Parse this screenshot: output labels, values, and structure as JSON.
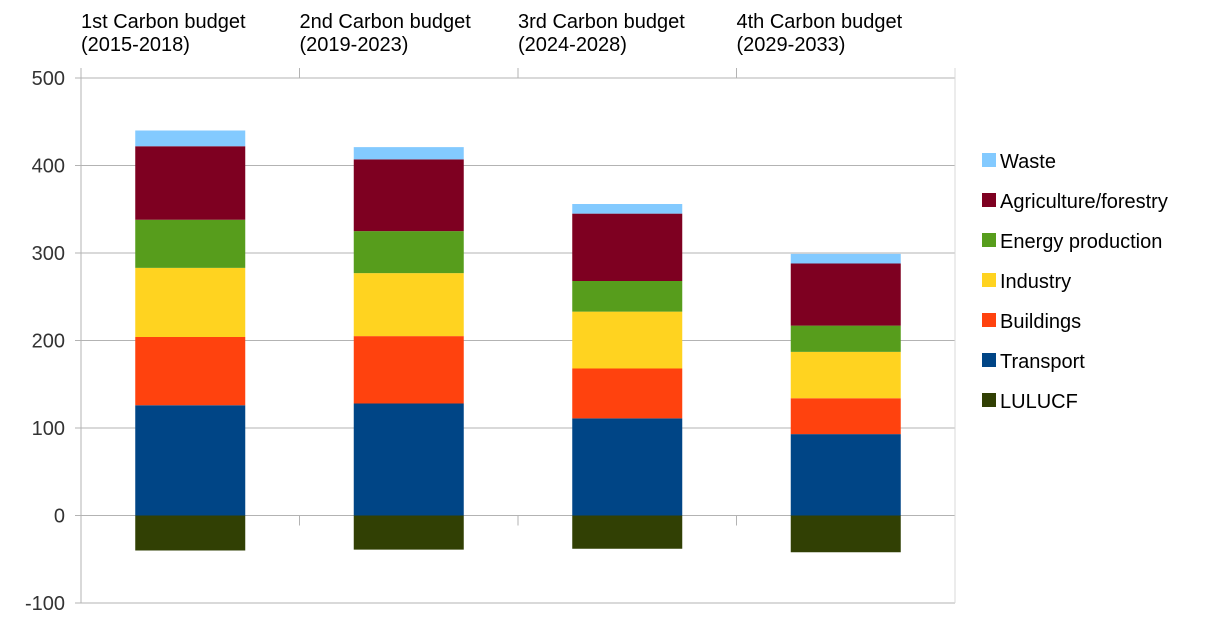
{
  "chart_data": {
    "type": "bar",
    "stacked": true,
    "title": "",
    "xlabel": "",
    "ylabel": "",
    "ylim": [
      -100,
      500
    ],
    "yticks": [
      -100,
      0,
      100,
      200,
      300,
      400,
      500
    ],
    "grid": true,
    "legend_position": "right",
    "categories": [
      [
        "1st Carbon budget",
        "(2015-2018)"
      ],
      [
        "2nd Carbon budget",
        "(2019-2023)"
      ],
      [
        "3rd Carbon budget",
        "(2024-2028)"
      ],
      [
        "4th Carbon budget",
        "(2029-2033)"
      ]
    ],
    "series": [
      {
        "name": "LULUCF",
        "color": "#314004",
        "values": [
          -40,
          -39,
          -38,
          -42
        ]
      },
      {
        "name": "Transport",
        "color": "#004586",
        "values": [
          126,
          128,
          111,
          93
        ]
      },
      {
        "name": "Buildings",
        "color": "#ff420e",
        "values": [
          78,
          77,
          57,
          41
        ]
      },
      {
        "name": "Industry",
        "color": "#ffd320",
        "values": [
          79,
          72,
          65,
          53
        ]
      },
      {
        "name": "Energy production",
        "color": "#579d1c",
        "values": [
          55,
          48,
          35,
          30
        ]
      },
      {
        "name": "Agriculture/forestry",
        "color": "#7e0021",
        "values": [
          84,
          82,
          77,
          71
        ]
      },
      {
        "name": "Waste",
        "color": "#83caff",
        "values": [
          18,
          14,
          11,
          11
        ]
      }
    ],
    "legend_order": [
      "Waste",
      "Agriculture/forestry",
      "Energy production",
      "Industry",
      "Buildings",
      "Transport",
      "LULUCF"
    ]
  }
}
